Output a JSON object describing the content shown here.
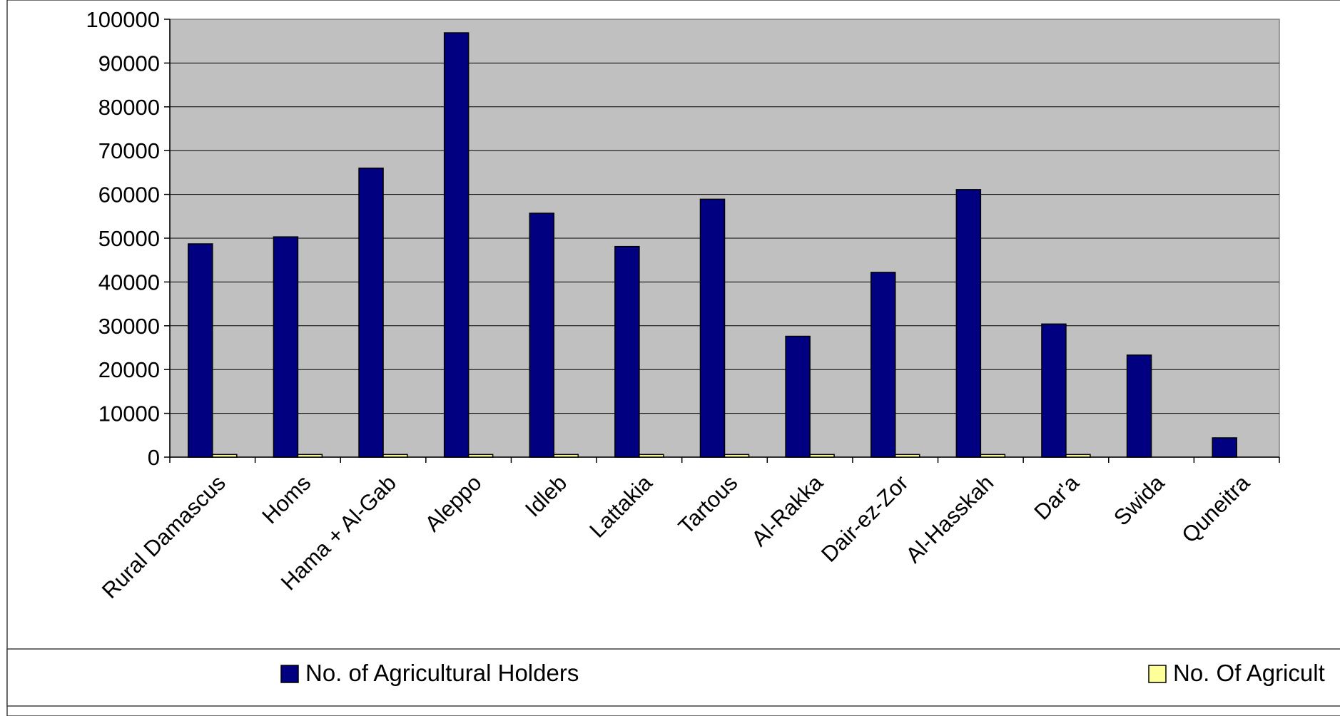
{
  "chart_data": {
    "type": "bar",
    "categories": [
      "Rural Damascus",
      "Homs",
      "Hama + Al-Gab",
      "Aleppo",
      "Idleb",
      "Lattakia",
      "Tartous",
      "Al-Rakka",
      "Dair-ez-Zor",
      "Al-Hasskah",
      "Dar'a",
      "Swida",
      "Quneitra"
    ],
    "series": [
      {
        "name": "No. of Agricultural Holders",
        "color": "#000080",
        "values": [
          48700,
          50300,
          66000,
          96900,
          55700,
          48100,
          58900,
          27600,
          42200,
          61100,
          30400,
          23300,
          4400
        ]
      },
      {
        "name": "No. Of Agricult",
        "color": "#FFFF99",
        "values": [
          600,
          600,
          600,
          600,
          600,
          600,
          600,
          600,
          600,
          600,
          600,
          0,
          0
        ]
      }
    ],
    "ylim": [
      0,
      100000
    ],
    "yticks": [
      0,
      10000,
      20000,
      30000,
      40000,
      50000,
      60000,
      70000,
      80000,
      90000,
      100000
    ],
    "grid": true,
    "legend_position": "bottom",
    "plot_background": "#C0C0C0"
  }
}
